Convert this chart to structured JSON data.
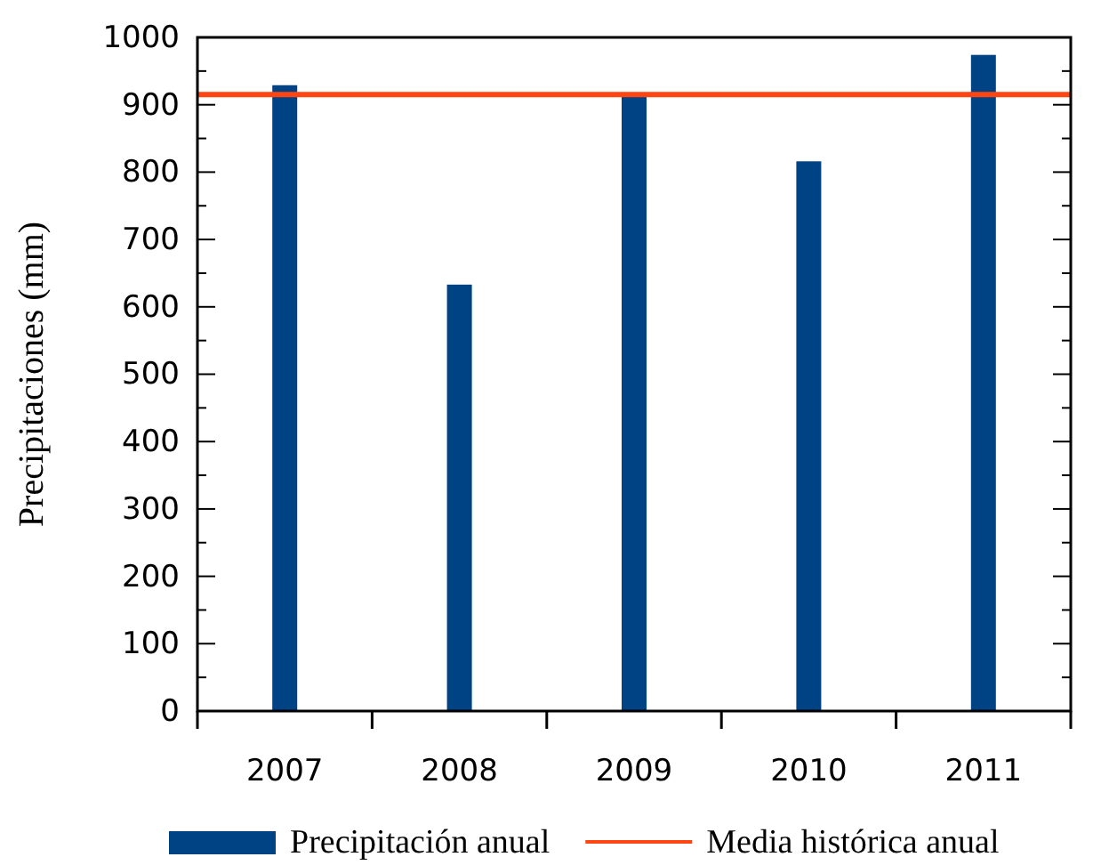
{
  "chart_data": {
    "type": "bar",
    "ylabel": "Precipitaciones (mm)",
    "categories": [
      "2007",
      "2008",
      "2009",
      "2010",
      "2011"
    ],
    "series": [
      {
        "name": "Precipitación anual",
        "color": "#004385",
        "values": [
          929,
          633,
          918,
          816,
          974
        ]
      }
    ],
    "ylim": [
      0,
      1000
    ],
    "yticks": [
      0,
      100,
      200,
      300,
      400,
      500,
      600,
      700,
      800,
      900,
      1000
    ],
    "ref_lines": [
      {
        "axis": "y",
        "value": 915,
        "label": "Media histórica anual",
        "color": "#ff4612"
      }
    ],
    "legend": "bottom",
    "grid": false
  }
}
